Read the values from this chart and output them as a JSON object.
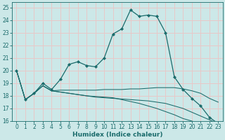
{
  "xlabel": "Humidex (Indice chaleur)",
  "xlim": [
    -0.5,
    23.5
  ],
  "ylim": [
    16,
    25.4
  ],
  "yticks": [
    16,
    17,
    18,
    19,
    20,
    21,
    22,
    23,
    24,
    25
  ],
  "xticks": [
    0,
    1,
    2,
    3,
    4,
    5,
    6,
    7,
    8,
    9,
    10,
    11,
    12,
    13,
    14,
    15,
    16,
    17,
    18,
    19,
    20,
    21,
    22,
    23
  ],
  "background_color": "#cce8e8",
  "grid_color": "#e8c8c8",
  "line_color": "#1a6b6b",
  "curve_main": {
    "x": [
      0,
      1,
      2,
      3,
      4,
      5,
      6,
      7,
      8,
      9,
      10,
      11,
      12,
      13,
      14,
      15,
      16,
      17,
      18,
      19,
      20,
      21,
      22,
      23
    ],
    "y": [
      20.0,
      17.7,
      18.2,
      19.0,
      18.5,
      19.3,
      20.5,
      20.7,
      20.4,
      20.3,
      21.0,
      22.9,
      23.3,
      24.8,
      24.3,
      24.4,
      24.3,
      23.0,
      19.5,
      18.5,
      17.8,
      17.2,
      16.3,
      15.8
    ]
  },
  "curve_flat1": {
    "x": [
      0,
      1,
      2,
      3,
      4,
      5,
      6,
      7,
      8,
      9,
      10,
      11,
      12,
      13,
      14,
      15,
      16,
      17,
      18,
      19,
      20,
      21,
      22,
      23
    ],
    "y": [
      20.0,
      17.7,
      18.2,
      18.8,
      18.4,
      18.45,
      18.45,
      18.45,
      18.45,
      18.45,
      18.5,
      18.5,
      18.5,
      18.55,
      18.55,
      18.6,
      18.65,
      18.65,
      18.65,
      18.55,
      18.4,
      18.2,
      17.8,
      17.5
    ]
  },
  "curve_flat2": {
    "x": [
      0,
      1,
      2,
      3,
      4,
      5,
      6,
      7,
      8,
      9,
      10,
      11,
      12,
      13,
      14,
      15,
      16,
      17,
      18,
      19,
      20,
      21,
      22,
      23
    ],
    "y": [
      20.0,
      17.7,
      18.2,
      18.8,
      18.4,
      18.3,
      18.2,
      18.1,
      18.0,
      17.9,
      17.85,
      17.8,
      17.75,
      17.7,
      17.65,
      17.6,
      17.5,
      17.4,
      17.2,
      17.0,
      16.7,
      16.4,
      16.1,
      15.8
    ]
  },
  "curve_diag": {
    "x": [
      1,
      2,
      3,
      4,
      5,
      6,
      7,
      8,
      9,
      10,
      11,
      12,
      13,
      14,
      15,
      16,
      17,
      18,
      19,
      20,
      21,
      22,
      23
    ],
    "y": [
      17.7,
      18.2,
      18.8,
      18.4,
      18.3,
      18.2,
      18.1,
      18.0,
      17.95,
      17.9,
      17.85,
      17.7,
      17.55,
      17.4,
      17.2,
      17.0,
      16.75,
      16.5,
      16.2,
      16.0,
      15.8,
      15.6,
      15.4
    ]
  }
}
